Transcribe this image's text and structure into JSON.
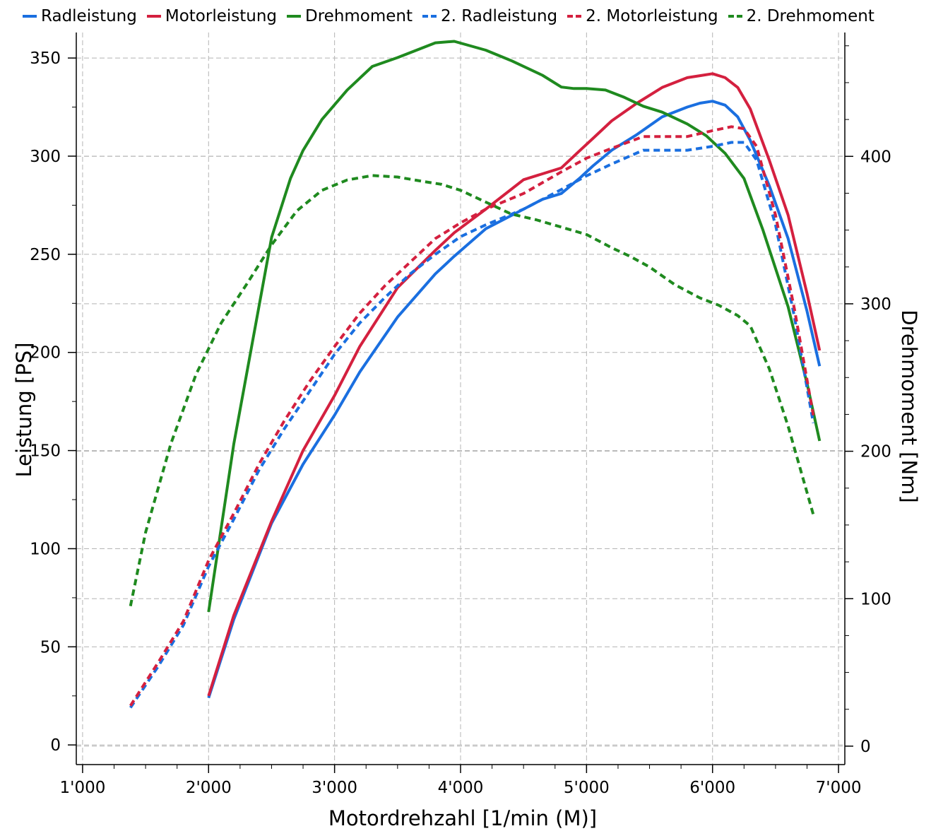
{
  "chart_data": {
    "type": "line",
    "xlabel": "Motordrehzahl [1/min (M)]",
    "ylabel_left": "Leistung [PS]",
    "ylabel_right": "Drehmoment [Nm]",
    "xlim": [
      950,
      7050
    ],
    "ylim_left": [
      -10,
      363
    ],
    "ylim_right": [
      -12.5,
      484
    ],
    "xticks": [
      {
        "v": 1000,
        "label": "1'000"
      },
      {
        "v": 2000,
        "label": "2'000"
      },
      {
        "v": 3000,
        "label": "3'000"
      },
      {
        "v": 4000,
        "label": "4'000"
      },
      {
        "v": 5000,
        "label": "5'000"
      },
      {
        "v": 6000,
        "label": "6'000"
      },
      {
        "v": 7000,
        "label": "7'000"
      }
    ],
    "yticks_left": [
      {
        "v": 0,
        "label": "0"
      },
      {
        "v": 50,
        "label": "50"
      },
      {
        "v": 100,
        "label": "100"
      },
      {
        "v": 150,
        "label": "150"
      },
      {
        "v": 200,
        "label": "200"
      },
      {
        "v": 250,
        "label": "250"
      },
      {
        "v": 300,
        "label": "300"
      },
      {
        "v": 350,
        "label": "350"
      }
    ],
    "yticks_right": [
      {
        "v": 0,
        "label": "0"
      },
      {
        "v": 100,
        "label": "100"
      },
      {
        "v": 200,
        "label": "200"
      },
      {
        "v": 300,
        "label": "300"
      },
      {
        "v": 400,
        "label": "400"
      }
    ],
    "grid": true,
    "legend_position": "top",
    "series": [
      {
        "name": "Radleistung",
        "axis": "left",
        "color": "#1a6fe0",
        "dash": false,
        "x": [
          2000,
          2200,
          2500,
          2750,
          3000,
          3200,
          3500,
          3800,
          3950,
          4200,
          4500,
          4650,
          4800,
          4950,
          5050,
          5200,
          5400,
          5600,
          5800,
          5900,
          6000,
          6100,
          6200,
          6300,
          6450,
          6600,
          6750,
          6850
        ],
        "y": [
          24,
          64,
          113,
          143,
          168,
          190,
          218,
          240,
          249,
          263,
          273,
          278,
          281,
          289,
          295,
          303,
          311,
          320,
          325,
          327,
          328,
          326,
          320,
          308,
          285,
          258,
          221,
          193
        ]
      },
      {
        "name": "Motorleistung",
        "axis": "left",
        "color": "#d4203f",
        "dash": false,
        "x": [
          2000,
          2200,
          2500,
          2750,
          3000,
          3200,
          3500,
          3800,
          3950,
          4200,
          4500,
          4650,
          4800,
          4950,
          5050,
          5200,
          5400,
          5600,
          5800,
          5900,
          6000,
          6100,
          6200,
          6300,
          6450,
          6600,
          6750,
          6850
        ],
        "y": [
          25,
          66,
          114,
          150,
          178,
          203,
          233,
          252,
          261,
          273,
          288,
          291,
          294,
          303,
          309,
          318,
          327,
          335,
          340,
          341,
          342,
          340,
          335,
          324,
          298,
          270,
          230,
          201
        ]
      },
      {
        "name": "Drehmoment",
        "axis": "right",
        "color": "#1f8a1f",
        "dash": false,
        "x": [
          2000,
          2200,
          2500,
          2650,
          2750,
          2900,
          3100,
          3300,
          3500,
          3800,
          3950,
          4200,
          4400,
          4650,
          4800,
          4900,
          5000,
          5150,
          5300,
          5450,
          5600,
          5800,
          5950,
          6100,
          6250,
          6400,
          6600,
          6750,
          6850
        ],
        "y": [
          91,
          205,
          345,
          385,
          404,
          425,
          445,
          461,
          467,
          477,
          478,
          472,
          465,
          455,
          447,
          446,
          446,
          445,
          440,
          434,
          430,
          422,
          414,
          402,
          385,
          350,
          298,
          246,
          207
        ]
      },
      {
        "name": "2. Radleistung",
        "axis": "left",
        "color": "#1a6fe0",
        "dash": true,
        "x": [
          1380,
          1600,
          1800,
          2000,
          2200,
          2400,
          2600,
          2800,
          3000,
          3200,
          3400,
          3600,
          3800,
          4000,
          4200,
          4500,
          4800,
          5000,
          5200,
          5450,
          5600,
          5800,
          6000,
          6150,
          6250,
          6350,
          6500,
          6650,
          6800
        ],
        "y": [
          19,
          40,
          61,
          91,
          115,
          140,
          161,
          180,
          199,
          215,
          228,
          240,
          250,
          259,
          265,
          273,
          283,
          290,
          296,
          303,
          303,
          303,
          305,
          307,
          307,
          298,
          265,
          218,
          164
        ]
      },
      {
        "name": "2. Motorleistung",
        "axis": "left",
        "color": "#d4203f",
        "dash": true,
        "x": [
          1380,
          1600,
          1800,
          2000,
          2200,
          2400,
          2600,
          2800,
          3000,
          3200,
          3400,
          3600,
          3800,
          4000,
          4200,
          4500,
          4800,
          5000,
          5200,
          5450,
          5600,
          5800,
          6000,
          6150,
          6250,
          6350,
          6500,
          6650,
          6800
        ],
        "y": [
          20,
          42,
          63,
          94,
          118,
          143,
          165,
          185,
          203,
          220,
          234,
          246,
          258,
          266,
          273,
          281,
          292,
          299,
          304,
          310,
          310,
          310,
          313,
          315,
          314,
          305,
          270,
          222,
          168
        ]
      },
      {
        "name": "2. Drehmoment",
        "axis": "right",
        "color": "#1f8a1f",
        "dash": true,
        "x": [
          1380,
          1500,
          1700,
          1900,
          2100,
          2300,
          2500,
          2700,
          2900,
          3100,
          3300,
          3500,
          3700,
          3850,
          4000,
          4200,
          4400,
          4600,
          4800,
          5000,
          5200,
          5350,
          5500,
          5700,
          5900,
          6050,
          6200,
          6300,
          6450,
          6600,
          6750,
          6800
        ],
        "y": [
          95,
          145,
          205,
          252,
          287,
          313,
          340,
          363,
          377,
          384,
          387,
          386,
          383,
          381,
          377,
          369,
          361,
          357,
          352,
          347,
          338,
          332,
          325,
          313,
          304,
          299,
          292,
          285,
          256,
          217,
          172,
          157
        ]
      }
    ]
  }
}
